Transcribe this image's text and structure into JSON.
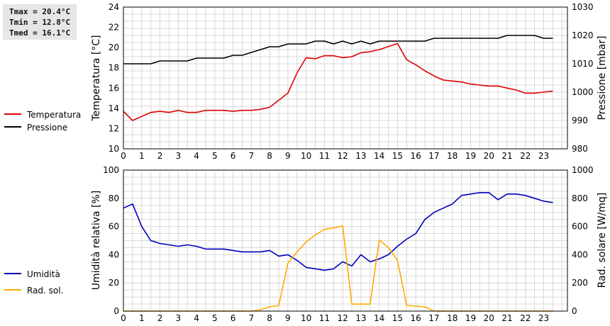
{
  "stats": {
    "tmax": "Tmax = 20.4°C",
    "tmin": "Tmin = 12.8°C",
    "tmed": "Tmed = 16.1°C"
  },
  "chart_data": [
    {
      "type": "line",
      "x_ticks": [
        "0",
        "1",
        "2",
        "3",
        "4",
        "5",
        "6",
        "7",
        "8",
        "9",
        "10",
        "11",
        "12",
        "13",
        "14",
        "15",
        "16",
        "17",
        "18",
        "19",
        "20",
        "21",
        "22",
        "23"
      ],
      "y_left": {
        "label": "Temperatura [°C]",
        "lim": [
          10,
          24
        ],
        "ticks": [
          "10",
          "12",
          "14",
          "16",
          "18",
          "20",
          "22",
          "24"
        ]
      },
      "y_right": {
        "label": "Pressione [mbar]",
        "lim": [
          980,
          1030
        ],
        "ticks": [
          "980",
          "990",
          "1000",
          "1010",
          "1020",
          "1030"
        ]
      },
      "grid": true,
      "legend_position": "left-outside",
      "series": [
        {
          "name": "Temperatura",
          "axis": "left",
          "color": "#dd0000",
          "points": [
            [
              0,
              13.7
            ],
            [
              0.5,
              12.8
            ],
            [
              1,
              13.2
            ],
            [
              1.5,
              13.6
            ],
            [
              2,
              13.7
            ],
            [
              2.5,
              13.6
            ],
            [
              3,
              13.8
            ],
            [
              3.5,
              13.6
            ],
            [
              4,
              13.6
            ],
            [
              4.5,
              13.8
            ],
            [
              5,
              13.8
            ],
            [
              5.5,
              13.8
            ],
            [
              6,
              13.7
            ],
            [
              6.5,
              13.8
            ],
            [
              7,
              13.8
            ],
            [
              7.5,
              13.9
            ],
            [
              8,
              14.1
            ],
            [
              8.5,
              14.8
            ],
            [
              9,
              15.5
            ],
            [
              9.5,
              17.5
            ],
            [
              10,
              19.0
            ],
            [
              10.5,
              18.9
            ],
            [
              11,
              19.2
            ],
            [
              11.5,
              19.2
            ],
            [
              12,
              19.0
            ],
            [
              12.5,
              19.1
            ],
            [
              13,
              19.5
            ],
            [
              13.5,
              19.6
            ],
            [
              14,
              19.8
            ],
            [
              14.5,
              20.1
            ],
            [
              15,
              20.4
            ],
            [
              15.5,
              18.8
            ],
            [
              16,
              18.3
            ],
            [
              16.5,
              17.7
            ],
            [
              17,
              17.2
            ],
            [
              17.5,
              16.8
            ],
            [
              18,
              16.7
            ],
            [
              18.5,
              16.6
            ],
            [
              19,
              16.4
            ],
            [
              19.5,
              16.3
            ],
            [
              20,
              16.2
            ],
            [
              20.5,
              16.2
            ],
            [
              21,
              16.0
            ],
            [
              21.5,
              15.8
            ],
            [
              22,
              15.5
            ],
            [
              22.5,
              15.5
            ],
            [
              23,
              15.6
            ],
            [
              23.5,
              15.7
            ]
          ]
        },
        {
          "name": "Pressione",
          "axis": "right",
          "color": "#000000",
          "points": [
            [
              0,
              1010
            ],
            [
              1.5,
              1010
            ],
            [
              2,
              1011
            ],
            [
              3.5,
              1011
            ],
            [
              4,
              1012
            ],
            [
              5.5,
              1012
            ],
            [
              6,
              1013
            ],
            [
              6.5,
              1013
            ],
            [
              7,
              1014
            ],
            [
              7.5,
              1015
            ],
            [
              8,
              1016
            ],
            [
              8.5,
              1016
            ],
            [
              9,
              1017
            ],
            [
              10,
              1017
            ],
            [
              10.5,
              1018
            ],
            [
              11,
              1018
            ],
            [
              11.5,
              1017
            ],
            [
              12,
              1018
            ],
            [
              12.5,
              1017
            ],
            [
              13,
              1018
            ],
            [
              13.5,
              1017
            ],
            [
              14,
              1018
            ],
            [
              16.5,
              1018
            ],
            [
              17,
              1019
            ],
            [
              20.5,
              1019
            ],
            [
              21,
              1020
            ],
            [
              22.5,
              1020
            ],
            [
              23,
              1019
            ],
            [
              23.5,
              1019
            ]
          ]
        }
      ]
    },
    {
      "type": "line",
      "x_ticks": [
        "0",
        "1",
        "2",
        "3",
        "4",
        "5",
        "6",
        "7",
        "8",
        "9",
        "10",
        "11",
        "12",
        "13",
        "14",
        "15",
        "16",
        "17",
        "18",
        "19",
        "20",
        "21",
        "22",
        "23"
      ],
      "y_left": {
        "label": "Umidità relativa [%]",
        "lim": [
          0,
          100
        ],
        "ticks": [
          "0",
          "20",
          "40",
          "60",
          "80",
          "100"
        ]
      },
      "y_right": {
        "label": "Rad. solare [W/mq]",
        "lim": [
          0,
          1000
        ],
        "ticks": [
          "0",
          "200",
          "400",
          "600",
          "800",
          "1000"
        ]
      },
      "grid": true,
      "legend_position": "left-outside",
      "series": [
        {
          "name": "Umidità",
          "axis": "left",
          "color": "#0000bb",
          "points": [
            [
              0,
              73
            ],
            [
              0.5,
              76
            ],
            [
              1,
              60
            ],
            [
              1.5,
              50
            ],
            [
              2,
              48
            ],
            [
              2.5,
              47
            ],
            [
              3,
              46
            ],
            [
              3.5,
              47
            ],
            [
              4,
              46
            ],
            [
              4.5,
              44
            ],
            [
              5,
              44
            ],
            [
              5.5,
              44
            ],
            [
              6,
              43
            ],
            [
              6.5,
              42
            ],
            [
              7,
              42
            ],
            [
              7.5,
              42
            ],
            [
              8,
              43
            ],
            [
              8.5,
              39
            ],
            [
              9,
              40
            ],
            [
              9.5,
              36
            ],
            [
              10,
              31
            ],
            [
              10.5,
              30
            ],
            [
              11,
              29
            ],
            [
              11.5,
              30
            ],
            [
              12,
              35
            ],
            [
              12.5,
              32
            ],
            [
              13,
              40
            ],
            [
              13.5,
              35
            ],
            [
              14,
              37
            ],
            [
              14.5,
              40
            ],
            [
              15,
              46
            ],
            [
              15.5,
              51
            ],
            [
              16,
              55
            ],
            [
              16.5,
              65
            ],
            [
              17,
              70
            ],
            [
              17.5,
              73
            ],
            [
              18,
              76
            ],
            [
              18.5,
              82
            ],
            [
              19,
              83
            ],
            [
              19.5,
              84
            ],
            [
              20,
              84
            ],
            [
              20.5,
              79
            ],
            [
              21,
              83
            ],
            [
              21.5,
              83
            ],
            [
              22,
              82
            ],
            [
              22.5,
              80
            ],
            [
              23,
              78
            ],
            [
              23.5,
              77
            ]
          ]
        },
        {
          "name": "Rad. sol.",
          "axis": "right",
          "color": "#ffaa00",
          "points": [
            [
              0,
              0
            ],
            [
              7,
              0
            ],
            [
              7.5,
              10
            ],
            [
              8,
              30
            ],
            [
              8.5,
              40
            ],
            [
              9,
              340
            ],
            [
              9.5,
              420
            ],
            [
              10,
              490
            ],
            [
              10.5,
              540
            ],
            [
              11,
              580
            ],
            [
              11.5,
              590
            ],
            [
              12,
              605
            ],
            [
              12.5,
              50
            ],
            [
              13,
              50
            ],
            [
              13.5,
              50
            ],
            [
              14,
              505
            ],
            [
              14.5,
              450
            ],
            [
              15,
              360
            ],
            [
              15.5,
              40
            ],
            [
              16,
              35
            ],
            [
              16.5,
              30
            ],
            [
              17,
              0
            ],
            [
              23.5,
              0
            ]
          ]
        }
      ]
    }
  ]
}
